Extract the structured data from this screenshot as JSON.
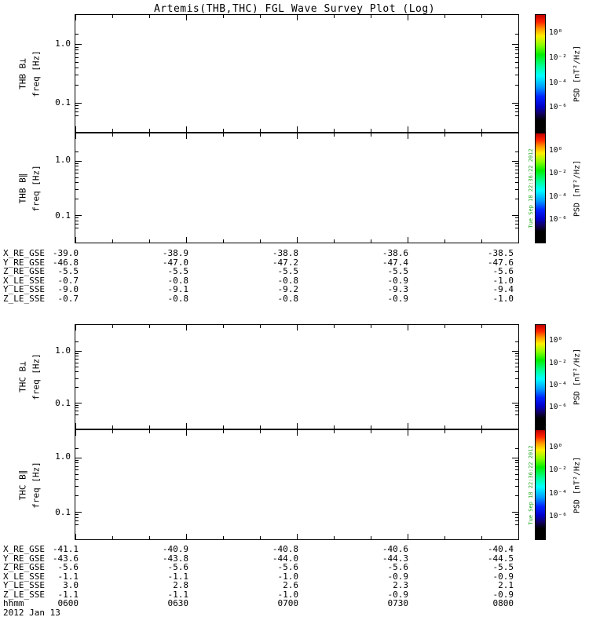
{
  "title": "Artemis(THB,THC) FGL Wave Survey Plot (Log)",
  "axis": {
    "ytick_top": "1.0",
    "ytick_bottom": "0.1"
  },
  "panels": [
    {
      "name": "THB B⊥",
      "ylabel": "freq [Hz]"
    },
    {
      "name": "THB B∥",
      "ylabel": "freq [Hz]"
    },
    {
      "name": "THC B⊥",
      "ylabel": "freq [Hz]"
    },
    {
      "name": "THC B∥",
      "ylabel": "freq [Hz]"
    }
  ],
  "colorbar": {
    "label": "PSD [nT²/Hz]",
    "ticks": [
      "10⁰",
      "10⁻²",
      "10⁻⁴",
      "10⁻⁶"
    ],
    "gradient_colors": [
      "#ff0000",
      "#ffff00",
      "#00ff00",
      "#00ffff",
      "#0000ff",
      "#000000"
    ]
  },
  "watermark": "Tue Sep 18 22:36:22 2012",
  "ephemeris": [
    {
      "rows": [
        {
          "label": "X_RE_GSE",
          "values": [
            "-39.0",
            "-38.9",
            "-38.8",
            "-38.6",
            "-38.5"
          ]
        },
        {
          "label": "Y_RE_GSE",
          "values": [
            "-46.8",
            "-47.0",
            "-47.2",
            "-47.4",
            "-47.6"
          ]
        },
        {
          "label": "Z_RE_GSE",
          "values": [
            "-5.5",
            "-5.5",
            "-5.5",
            "-5.5",
            "-5.6"
          ]
        },
        {
          "label": "X_LE_SSE",
          "values": [
            "-0.7",
            "-0.8",
            "-0.8",
            "-0.9",
            "-1.0"
          ]
        },
        {
          "label": "Y_LE_SSE",
          "values": [
            "-9.0",
            "-9.1",
            "-9.2",
            "-9.3",
            "-9.4"
          ]
        },
        {
          "label": "Z_LE_SSE",
          "values": [
            "-0.7",
            "-0.8",
            "-0.8",
            "-0.9",
            "-1.0"
          ]
        }
      ]
    },
    {
      "rows": [
        {
          "label": "X_RE_GSE",
          "values": [
            "-41.1",
            "-40.9",
            "-40.8",
            "-40.6",
            "-40.4"
          ]
        },
        {
          "label": "Y_RE_GSE",
          "values": [
            "-43.6",
            "-43.8",
            "-44.0",
            "-44.3",
            "-44.5"
          ]
        },
        {
          "label": "Z_RE_GSE",
          "values": [
            "-5.6",
            "-5.6",
            "-5.6",
            "-5.6",
            "-5.5"
          ]
        },
        {
          "label": "X_LE_SSE",
          "values": [
            "-1.1",
            "-1.1",
            "-1.0",
            "-0.9",
            "-0.9"
          ]
        },
        {
          "label": "Y_LE_SSE",
          "values": [
            "3.0",
            "2.8",
            "2.6",
            "2.3",
            "2.1"
          ]
        },
        {
          "label": "Z_LE_SSE",
          "values": [
            "-1.1",
            "-1.1",
            "-1.0",
            "-0.9",
            "-0.9"
          ]
        }
      ]
    }
  ],
  "time": {
    "label": "hhmm",
    "ticks": [
      "0600",
      "0630",
      "0700",
      "0730",
      "0800"
    ],
    "date": "2012 Jan 13"
  },
  "chart_data": {
    "type": "heatmap",
    "title": "Artemis(THB,THC) FGL Wave Survey Plot (Log)",
    "x": {
      "label": "hhmm",
      "ticks": [
        "0600",
        "0630",
        "0700",
        "0730",
        "0800"
      ],
      "date": "2012 Jan 13"
    },
    "panels": [
      {
        "name": "THB B⊥",
        "ylabel": "freq [Hz]",
        "yscale": "log",
        "ylim": [
          0.056,
          1.78
        ],
        "yticks": [
          1.0,
          0.1
        ],
        "values": [],
        "note": "panel blank - no spectrogram data rendered"
      },
      {
        "name": "THB B∥",
        "ylabel": "freq [Hz]",
        "yscale": "log",
        "ylim": [
          0.056,
          1.78
        ],
        "yticks": [
          1.0,
          0.1
        ],
        "values": [],
        "note": "panel blank - no spectrogram data rendered"
      },
      {
        "name": "THC B⊥",
        "ylabel": "freq [Hz]",
        "yscale": "log",
        "ylim": [
          0.056,
          1.78
        ],
        "yticks": [
          1.0,
          0.1
        ],
        "values": [],
        "note": "panel blank - no spectrogram data rendered"
      },
      {
        "name": "THC B∥",
        "ylabel": "freq [Hz]",
        "yscale": "log",
        "ylim": [
          0.056,
          1.78
        ],
        "yticks": [
          1.0,
          0.1
        ],
        "values": [],
        "note": "panel blank - no spectrogram data rendered"
      }
    ],
    "colorbar": {
      "label": "PSD [nT²/Hz]",
      "scale": "log",
      "ticks": [
        "10^0",
        "10^-2",
        "10^-4",
        "10^-6"
      ],
      "legend_position": "right"
    },
    "grid": false
  }
}
